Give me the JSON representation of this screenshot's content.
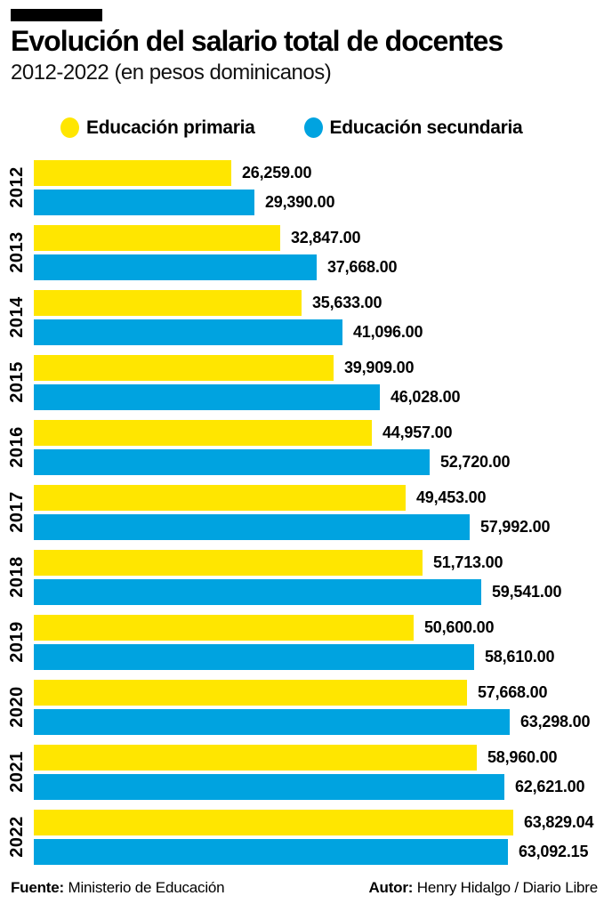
{
  "header": {
    "title": "Evolución del salario total de docentes",
    "subtitle": "2012-2022 (en pesos dominicanos)"
  },
  "legend": [
    {
      "label": "Educación primaria",
      "color": "#FFE600"
    },
    {
      "label": "Educación secundaria",
      "color": "#00A3E0"
    }
  ],
  "chart_data": {
    "type": "bar",
    "orientation": "horizontal",
    "title": "Evolución del salario total de docentes",
    "subtitle": "2012-2022 (en pesos dominicanos)",
    "unit": "pesos dominicanos",
    "categories": [
      "2012",
      "2013",
      "2014",
      "2015",
      "2016",
      "2017",
      "2018",
      "2019",
      "2020",
      "2021",
      "2022"
    ],
    "series": [
      {
        "name": "Educación primaria",
        "color": "#FFE600",
        "values": [
          26259.0,
          32847.0,
          35633.0,
          39909.0,
          44957.0,
          49453.0,
          51713.0,
          50600.0,
          57668.0,
          58960.0,
          63829.04
        ],
        "labels": [
          "26,259.00",
          "32,847.00",
          "35,633.00",
          "39,909.00",
          "44,957.00",
          "49,453.00",
          "51,713.00",
          "50,600.00",
          "57,668.00",
          "58,960.00",
          "63,829.04"
        ]
      },
      {
        "name": "Educación secundaria",
        "color": "#00A3E0",
        "values": [
          29390.0,
          37668.0,
          41096.0,
          46028.0,
          52720.0,
          57992.0,
          59541.0,
          58610.0,
          63298.0,
          62621.0,
          63092.15
        ],
        "labels": [
          "29,390.00",
          "37,668.00",
          "41,096.00",
          "46,028.00",
          "52,720.00",
          "57,992.00",
          "59,541.00",
          "58,610.00",
          "63,298.00",
          "62,621.00",
          "63,092.15"
        ]
      }
    ],
    "xlim": [
      0,
      63829.04
    ],
    "grid": false,
    "legend_position": "top",
    "value_labels": true
  },
  "footer": {
    "source_label": "Fuente:",
    "source_text": "Ministerio de Educación",
    "author_label": "Autor:",
    "author_text": "Henry Hidalgo / Diario Libre"
  }
}
